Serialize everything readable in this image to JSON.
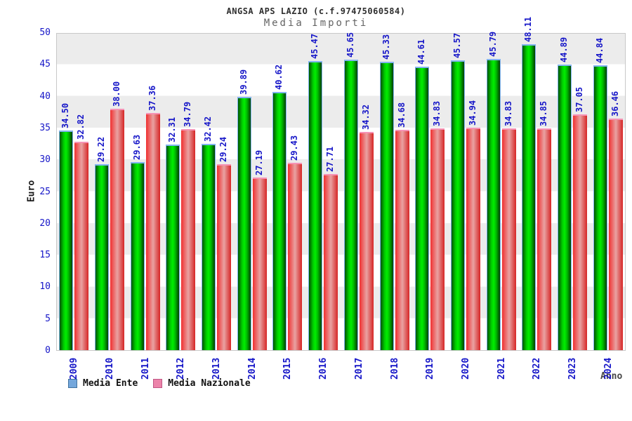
{
  "header": {
    "title": "ANGSA APS LAZIO (c.f.97475060584)",
    "subtitle": "Media Importi"
  },
  "chart_data": {
    "type": "bar",
    "title": "ANGSA APS LAZIO (c.f.97475060584)",
    "subtitle": "Media Importi",
    "categories": [
      "2009",
      "2010",
      "2011",
      "2012",
      "2013",
      "2014",
      "2015",
      "2016",
      "2017",
      "2018",
      "2019",
      "2020",
      "2021",
      "2022",
      "2023",
      "2024"
    ],
    "series": [
      {
        "name": "Media Ente",
        "values": [
          34.5,
          29.22,
          29.63,
          32.31,
          32.42,
          39.89,
          40.62,
          45.47,
          45.65,
          45.33,
          44.61,
          45.57,
          45.79,
          48.11,
          44.89,
          44.84
        ],
        "labels": [
          "34.50",
          "29.22",
          "29.63",
          "32.31",
          "32.42",
          "39.89",
          "40.62",
          "45.47",
          "45.65",
          "45.33",
          "44.61",
          "45.57",
          "45.79",
          "48.11",
          "44.89",
          "44.84"
        ]
      },
      {
        "name": "Media Nazionale",
        "values": [
          32.82,
          38.0,
          37.36,
          34.79,
          29.24,
          27.19,
          29.43,
          27.71,
          34.32,
          34.68,
          34.83,
          34.94,
          34.83,
          34.85,
          37.05,
          36.46
        ],
        "labels": [
          "32.82",
          "38.00",
          "37.36",
          "34.79",
          "29.24",
          "27.19",
          "29.43",
          "27.71",
          "34.32",
          "34.68",
          "34.83",
          "34.94",
          "34.83",
          "34.85",
          "37.05",
          "36.46"
        ]
      }
    ],
    "xlabel": "Anno",
    "ylabel": "Euro",
    "ylim": [
      0,
      50
    ],
    "yticks": [
      0,
      5,
      10,
      15,
      20,
      25,
      30,
      35,
      40,
      45,
      50
    ],
    "grid": "alternating horizontal bands every 5 units",
    "legend_position": "bottom-left"
  },
  "colors": {
    "axis_text": "#1616c8",
    "value_text": "#1616c8",
    "title_text": "#2e2e2e",
    "subtitle_text": "#646464",
    "euro_text": "#1a1a1a",
    "anno_text": "#474747",
    "band": "#ececec",
    "plot_border": "#c8c8c8",
    "ente_gradient": [
      "#005200",
      "#00cc00",
      "#00ee00",
      "#00c000",
      "#003f00"
    ],
    "naz_gradient": [
      "#f03030",
      "#e9a2a2",
      "#d62626"
    ],
    "ente_cap": "#82b4f0",
    "naz_cap": "#f693b5",
    "legend": [
      {
        "fill": "#74a7dc",
        "border": "#41729f"
      },
      {
        "fill": "#ec84aa",
        "border": "#c05684"
      }
    ]
  }
}
